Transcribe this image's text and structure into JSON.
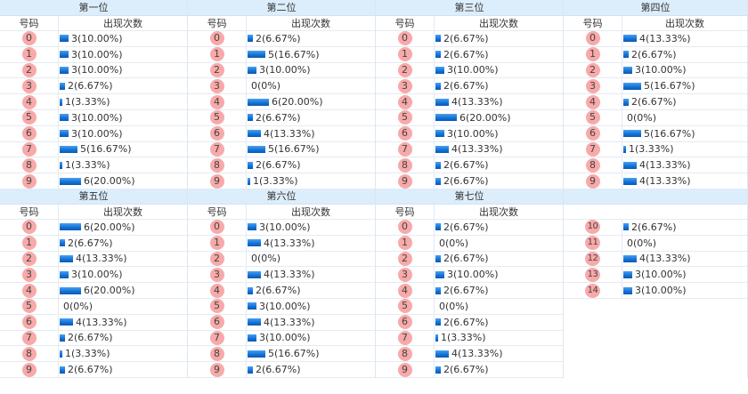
{
  "col_headers": {
    "number": "号码",
    "count": "出现次数"
  },
  "colors": {
    "header_bg": "#dcedfb",
    "ball": "#f8a9a9",
    "bar": "#1474d8"
  },
  "blocks": [
    {
      "groups": [
        {
          "title": "第一位",
          "rows": [
            {
              "n": "0",
              "c": 3,
              "t": "3(10.00%)"
            },
            {
              "n": "1",
              "c": 3,
              "t": "3(10.00%)"
            },
            {
              "n": "2",
              "c": 3,
              "t": "3(10.00%)"
            },
            {
              "n": "3",
              "c": 2,
              "t": "2(6.67%)"
            },
            {
              "n": "4",
              "c": 1,
              "t": "1(3.33%)"
            },
            {
              "n": "5",
              "c": 3,
              "t": "3(10.00%)"
            },
            {
              "n": "6",
              "c": 3,
              "t": "3(10.00%)"
            },
            {
              "n": "7",
              "c": 5,
              "t": "5(16.67%)"
            },
            {
              "n": "8",
              "c": 1,
              "t": "1(3.33%)"
            },
            {
              "n": "9",
              "c": 6,
              "t": "6(20.00%)"
            }
          ]
        },
        {
          "title": "第二位",
          "rows": [
            {
              "n": "0",
              "c": 2,
              "t": "2(6.67%)"
            },
            {
              "n": "1",
              "c": 5,
              "t": "5(16.67%)"
            },
            {
              "n": "2",
              "c": 3,
              "t": "3(10.00%)"
            },
            {
              "n": "3",
              "c": 0,
              "t": "0(0%)"
            },
            {
              "n": "4",
              "c": 6,
              "t": "6(20.00%)"
            },
            {
              "n": "5",
              "c": 2,
              "t": "2(6.67%)"
            },
            {
              "n": "6",
              "c": 4,
              "t": "4(13.33%)"
            },
            {
              "n": "7",
              "c": 5,
              "t": "5(16.67%)"
            },
            {
              "n": "8",
              "c": 2,
              "t": "2(6.67%)"
            },
            {
              "n": "9",
              "c": 1,
              "t": "1(3.33%)"
            }
          ]
        },
        {
          "title": "第三位",
          "rows": [
            {
              "n": "0",
              "c": 2,
              "t": "2(6.67%)"
            },
            {
              "n": "1",
              "c": 2,
              "t": "2(6.67%)"
            },
            {
              "n": "2",
              "c": 3,
              "t": "3(10.00%)"
            },
            {
              "n": "3",
              "c": 2,
              "t": "2(6.67%)"
            },
            {
              "n": "4",
              "c": 4,
              "t": "4(13.33%)"
            },
            {
              "n": "5",
              "c": 6,
              "t": "6(20.00%)"
            },
            {
              "n": "6",
              "c": 3,
              "t": "3(10.00%)"
            },
            {
              "n": "7",
              "c": 4,
              "t": "4(13.33%)"
            },
            {
              "n": "8",
              "c": 2,
              "t": "2(6.67%)"
            },
            {
              "n": "9",
              "c": 2,
              "t": "2(6.67%)"
            }
          ]
        },
        {
          "title": "第四位",
          "rows": [
            {
              "n": "0",
              "c": 4,
              "t": "4(13.33%)"
            },
            {
              "n": "1",
              "c": 2,
              "t": "2(6.67%)"
            },
            {
              "n": "2",
              "c": 3,
              "t": "3(10.00%)"
            },
            {
              "n": "3",
              "c": 5,
              "t": "5(16.67%)"
            },
            {
              "n": "4",
              "c": 2,
              "t": "2(6.67%)"
            },
            {
              "n": "5",
              "c": 0,
              "t": "0(0%)"
            },
            {
              "n": "6",
              "c": 5,
              "t": "5(16.67%)"
            },
            {
              "n": "7",
              "c": 1,
              "t": "1(3.33%)"
            },
            {
              "n": "8",
              "c": 4,
              "t": "4(13.33%)"
            },
            {
              "n": "9",
              "c": 4,
              "t": "4(13.33%)"
            }
          ]
        }
      ]
    },
    {
      "groups": [
        {
          "title": "第五位",
          "rows": [
            {
              "n": "0",
              "c": 6,
              "t": "6(20.00%)"
            },
            {
              "n": "1",
              "c": 2,
              "t": "2(6.67%)"
            },
            {
              "n": "2",
              "c": 4,
              "t": "4(13.33%)"
            },
            {
              "n": "3",
              "c": 3,
              "t": "3(10.00%)"
            },
            {
              "n": "4",
              "c": 6,
              "t": "6(20.00%)"
            },
            {
              "n": "5",
              "c": 0,
              "t": "0(0%)"
            },
            {
              "n": "6",
              "c": 4,
              "t": "4(13.33%)"
            },
            {
              "n": "7",
              "c": 2,
              "t": "2(6.67%)"
            },
            {
              "n": "8",
              "c": 1,
              "t": "1(3.33%)"
            },
            {
              "n": "9",
              "c": 2,
              "t": "2(6.67%)"
            }
          ]
        },
        {
          "title": "第六位",
          "rows": [
            {
              "n": "0",
              "c": 3,
              "t": "3(10.00%)"
            },
            {
              "n": "1",
              "c": 4,
              "t": "4(13.33%)"
            },
            {
              "n": "2",
              "c": 0,
              "t": "0(0%)"
            },
            {
              "n": "3",
              "c": 4,
              "t": "4(13.33%)"
            },
            {
              "n": "4",
              "c": 2,
              "t": "2(6.67%)"
            },
            {
              "n": "5",
              "c": 3,
              "t": "3(10.00%)"
            },
            {
              "n": "6",
              "c": 4,
              "t": "4(13.33%)"
            },
            {
              "n": "7",
              "c": 3,
              "t": "3(10.00%)"
            },
            {
              "n": "8",
              "c": 5,
              "t": "5(16.67%)"
            },
            {
              "n": "9",
              "c": 2,
              "t": "2(6.67%)"
            }
          ]
        },
        {
          "title": "第七位",
          "rows": [
            {
              "n": "0",
              "c": 2,
              "t": "2(6.67%)"
            },
            {
              "n": "1",
              "c": 0,
              "t": "0(0%)"
            },
            {
              "n": "2",
              "c": 2,
              "t": "2(6.67%)"
            },
            {
              "n": "3",
              "c": 3,
              "t": "3(10.00%)"
            },
            {
              "n": "4",
              "c": 2,
              "t": "2(6.67%)"
            },
            {
              "n": "5",
              "c": 0,
              "t": "0(0%)"
            },
            {
              "n": "6",
              "c": 2,
              "t": "2(6.67%)"
            },
            {
              "n": "7",
              "c": 1,
              "t": "1(3.33%)"
            },
            {
              "n": "8",
              "c": 4,
              "t": "4(13.33%)"
            },
            {
              "n": "9",
              "c": 2,
              "t": "2(6.67%)"
            }
          ]
        },
        {
          "title": "",
          "hide_col_headers": true,
          "rows": [
            {
              "n": "10",
              "c": 2,
              "t": "2(6.67%)"
            },
            {
              "n": "11",
              "c": 0,
              "t": "0(0%)"
            },
            {
              "n": "12",
              "c": 4,
              "t": "4(13.33%)"
            },
            {
              "n": "13",
              "c": 3,
              "t": "3(10.00%)"
            },
            {
              "n": "14",
              "c": 3,
              "t": "3(10.00%)"
            }
          ]
        }
      ]
    }
  ]
}
